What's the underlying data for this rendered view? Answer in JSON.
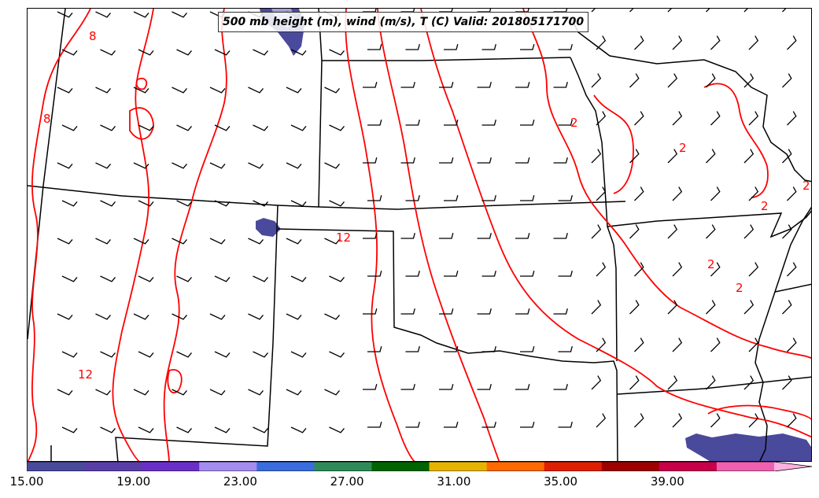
{
  "title": "500 mb height (m), wind (m/s), T (C) Valid: 201805171700",
  "contour_color": "#ff0000",
  "contour_labels": [
    "8",
    "8",
    "12",
    "12",
    "2",
    "2",
    "2",
    "2",
    "2",
    "2"
  ],
  "colorbar": {
    "min": 15.0,
    "max": 43.0,
    "extend": "max",
    "colors": [
      "#4a4a9c",
      "#5a3ea8",
      "#6b2fc9",
      "#a48cf0",
      "#3b6de0",
      "#2e8b57",
      "#006400",
      "#e6b400",
      "#ff6a00",
      "#e01e00",
      "#9e0000",
      "#c8004a",
      "#f060b0",
      "#ffb0e0"
    ],
    "tick_labels": [
      "15.00",
      "19.00",
      "23.00",
      "27.00",
      "31.00",
      "35.00",
      "39.00"
    ],
    "tick_values": [
      15,
      19,
      23,
      27,
      31,
      35,
      39
    ]
  }
}
